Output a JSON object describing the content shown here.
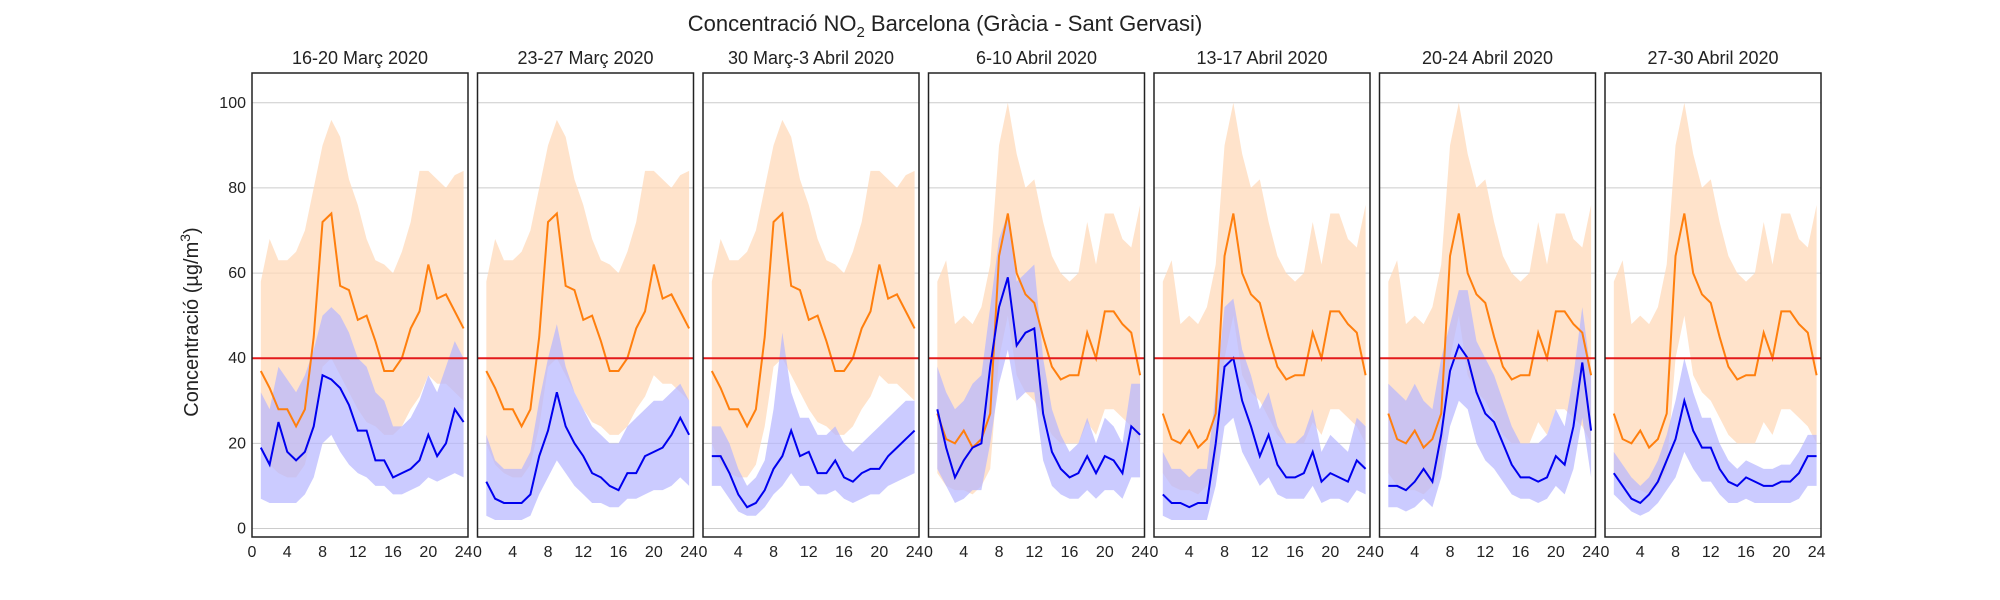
{
  "figure": {
    "title_main": "Concentració NO",
    "title_sub": "2",
    "title_rest": " Barcelona (Gràcia - Sant Gervasi)",
    "ylabel_main": "Concentració (µg/m",
    "ylabel_sup": "3",
    "ylabel_end": ")"
  },
  "chart_data": {
    "type": "line",
    "ylim": [
      -2,
      107
    ],
    "xlim": [
      0,
      24.5
    ],
    "yticks": [
      0,
      20,
      40,
      60,
      80,
      100
    ],
    "xticks": [
      0,
      4,
      8,
      12,
      16,
      20,
      24
    ],
    "grid": "horizontal",
    "threshold": 40,
    "colors": {
      "baseline_line": "#ff7f0e",
      "baseline_band": "#ffdab9",
      "current_line": "#0000ee",
      "current_band": "#b5b5ff",
      "threshold": "#e31a1c"
    },
    "panels": [
      {
        "title": "16-20 Març 2020",
        "x": [
          1,
          2,
          3,
          4,
          5,
          6,
          7,
          8,
          9,
          10,
          11,
          12,
          13,
          14,
          15,
          16,
          17,
          18,
          19,
          20,
          21,
          22,
          23,
          24
        ],
        "baseline": [
          37,
          33,
          28,
          28,
          24,
          28,
          45,
          72,
          74,
          57,
          56,
          49,
          50,
          44,
          37,
          37,
          40,
          47,
          51,
          62,
          54,
          55,
          51,
          47
        ],
        "baseline_low": [
          20,
          15,
          13,
          12,
          12,
          15,
          24,
          38,
          40,
          36,
          32,
          28,
          25,
          24,
          22,
          22,
          24,
          28,
          31,
          36,
          34,
          34,
          32,
          30
        ],
        "baseline_high": [
          58,
          68,
          63,
          63,
          65,
          70,
          80,
          90,
          96,
          92,
          82,
          76,
          68,
          63,
          62,
          60,
          65,
          72,
          84,
          84,
          82,
          80,
          83,
          84
        ],
        "current": [
          19,
          15,
          25,
          18,
          16,
          18,
          24,
          36,
          35,
          33,
          29,
          23,
          23,
          16,
          16,
          12,
          13,
          14,
          16,
          22,
          17,
          20,
          28,
          25
        ],
        "current_low": [
          7,
          6,
          6,
          6,
          6,
          8,
          12,
          20,
          22,
          18,
          15,
          13,
          12,
          10,
          10,
          8,
          8,
          9,
          10,
          12,
          11,
          12,
          13,
          12
        ],
        "current_high": [
          32,
          28,
          38,
          35,
          32,
          36,
          42,
          50,
          52,
          50,
          46,
          40,
          38,
          32,
          30,
          24,
          24,
          26,
          30,
          36,
          32,
          38,
          44,
          40
        ]
      },
      {
        "title": "23-27 Març 2020",
        "x": [
          1,
          2,
          3,
          4,
          5,
          6,
          7,
          8,
          9,
          10,
          11,
          12,
          13,
          14,
          15,
          16,
          17,
          18,
          19,
          20,
          21,
          22,
          23,
          24
        ],
        "baseline": [
          37,
          33,
          28,
          28,
          24,
          28,
          45,
          72,
          74,
          57,
          56,
          49,
          50,
          44,
          37,
          37,
          40,
          47,
          51,
          62,
          54,
          55,
          51,
          47
        ],
        "baseline_low": [
          20,
          15,
          13,
          12,
          12,
          15,
          24,
          38,
          40,
          36,
          32,
          28,
          25,
          24,
          22,
          22,
          24,
          28,
          31,
          36,
          34,
          34,
          32,
          30
        ],
        "baseline_high": [
          58,
          68,
          63,
          63,
          65,
          70,
          80,
          90,
          96,
          92,
          82,
          76,
          68,
          63,
          62,
          60,
          65,
          72,
          84,
          84,
          82,
          80,
          83,
          84
        ],
        "current": [
          11,
          7,
          6,
          6,
          6,
          8,
          17,
          23,
          32,
          24,
          20,
          17,
          13,
          12,
          10,
          9,
          13,
          13,
          17,
          18,
          19,
          22,
          26,
          22
        ],
        "current_low": [
          3,
          2,
          2,
          2,
          2,
          3,
          8,
          12,
          16,
          13,
          10,
          8,
          6,
          6,
          5,
          5,
          7,
          7,
          8,
          9,
          9,
          10,
          12,
          10
        ],
        "current_high": [
          22,
          16,
          14,
          14,
          14,
          18,
          30,
          40,
          48,
          38,
          32,
          28,
          24,
          22,
          20,
          20,
          24,
          26,
          28,
          30,
          30,
          32,
          34,
          30
        ]
      },
      {
        "title": "30 Març-3 Abril 2020",
        "x": [
          1,
          2,
          3,
          4,
          5,
          6,
          7,
          8,
          9,
          10,
          11,
          12,
          13,
          14,
          15,
          16,
          17,
          18,
          19,
          20,
          21,
          22,
          23,
          24
        ],
        "baseline": [
          37,
          33,
          28,
          28,
          24,
          28,
          45,
          72,
          74,
          57,
          56,
          49,
          50,
          44,
          37,
          37,
          40,
          47,
          51,
          62,
          54,
          55,
          51,
          47
        ],
        "baseline_low": [
          20,
          15,
          13,
          12,
          12,
          15,
          24,
          38,
          40,
          36,
          32,
          28,
          25,
          24,
          22,
          22,
          24,
          28,
          31,
          36,
          34,
          34,
          32,
          30
        ],
        "baseline_high": [
          58,
          68,
          63,
          63,
          65,
          70,
          80,
          90,
          96,
          92,
          82,
          76,
          68,
          63,
          62,
          60,
          65,
          72,
          84,
          84,
          82,
          80,
          83,
          84
        ],
        "current": [
          17,
          17,
          13,
          8,
          5,
          6,
          9,
          14,
          17,
          23,
          17,
          18,
          13,
          13,
          16,
          12,
          11,
          13,
          14,
          14,
          17,
          19,
          21,
          23
        ],
        "current_low": [
          10,
          10,
          7,
          4,
          3,
          3,
          5,
          8,
          10,
          13,
          10,
          10,
          8,
          8,
          9,
          7,
          6,
          7,
          8,
          8,
          10,
          11,
          12,
          13
        ],
        "current_high": [
          24,
          24,
          20,
          14,
          10,
          12,
          16,
          28,
          46,
          32,
          26,
          26,
          22,
          22,
          24,
          20,
          18,
          20,
          22,
          24,
          26,
          28,
          30,
          30
        ]
      },
      {
        "title": "6-10 Abril 2020",
        "x": [
          1,
          2,
          3,
          4,
          5,
          6,
          7,
          8,
          9,
          10,
          11,
          12,
          13,
          14,
          15,
          16,
          17,
          18,
          19,
          20,
          21,
          22,
          23,
          24
        ],
        "baseline": [
          27,
          21,
          20,
          23,
          19,
          21,
          27,
          64,
          74,
          60,
          55,
          53,
          45,
          38,
          35,
          36,
          36,
          46,
          40,
          51,
          51,
          48,
          46,
          36
        ],
        "baseline_low": [
          13,
          10,
          9,
          9,
          8,
          10,
          14,
          40,
          50,
          36,
          32,
          30,
          26,
          22,
          20,
          20,
          20,
          25,
          22,
          28,
          28,
          26,
          24,
          20
        ],
        "baseline_high": [
          58,
          63,
          48,
          50,
          48,
          52,
          62,
          90,
          100,
          88,
          80,
          82,
          72,
          64,
          60,
          58,
          60,
          72,
          62,
          74,
          74,
          68,
          66,
          76
        ],
        "current": [
          28,
          19,
          12,
          16,
          19,
          20,
          38,
          52,
          59,
          43,
          46,
          47,
          27,
          18,
          14,
          12,
          13,
          17,
          13,
          17,
          16,
          13,
          24,
          22
        ],
        "current_low": [
          14,
          10,
          6,
          7,
          9,
          9,
          20,
          34,
          42,
          30,
          32,
          32,
          16,
          10,
          8,
          7,
          7,
          9,
          7,
          9,
          9,
          7,
          12,
          12
        ],
        "current_high": [
          38,
          32,
          28,
          30,
          34,
          36,
          52,
          68,
          74,
          58,
          60,
          62,
          40,
          28,
          22,
          18,
          20,
          26,
          20,
          26,
          24,
          20,
          34,
          34
        ]
      },
      {
        "title": "13-17 Abril 2020",
        "x": [
          1,
          2,
          3,
          4,
          5,
          6,
          7,
          8,
          9,
          10,
          11,
          12,
          13,
          14,
          15,
          16,
          17,
          18,
          19,
          20,
          21,
          22,
          23,
          24
        ],
        "baseline": [
          27,
          21,
          20,
          23,
          19,
          21,
          27,
          64,
          74,
          60,
          55,
          53,
          45,
          38,
          35,
          36,
          36,
          46,
          40,
          51,
          51,
          48,
          46,
          36
        ],
        "baseline_low": [
          13,
          10,
          9,
          9,
          8,
          10,
          14,
          40,
          50,
          36,
          32,
          30,
          26,
          22,
          20,
          20,
          20,
          25,
          22,
          28,
          28,
          26,
          24,
          20
        ],
        "baseline_high": [
          58,
          63,
          48,
          50,
          48,
          52,
          62,
          90,
          100,
          88,
          80,
          82,
          72,
          64,
          60,
          58,
          60,
          72,
          62,
          74,
          74,
          68,
          66,
          76
        ],
        "current": [
          8,
          6,
          6,
          5,
          6,
          6,
          20,
          38,
          40,
          30,
          24,
          17,
          22,
          15,
          12,
          12,
          13,
          18,
          11,
          13,
          12,
          11,
          16,
          14
        ],
        "current_low": [
          3,
          2,
          2,
          2,
          2,
          2,
          10,
          24,
          26,
          18,
          14,
          10,
          12,
          8,
          7,
          7,
          7,
          10,
          6,
          7,
          7,
          6,
          9,
          8
        ],
        "current_high": [
          18,
          14,
          14,
          12,
          14,
          14,
          32,
          52,
          54,
          42,
          36,
          28,
          32,
          24,
          20,
          20,
          22,
          28,
          18,
          22,
          20,
          18,
          26,
          24
        ]
      },
      {
        "title": "20-24 Abril 2020",
        "x": [
          1,
          2,
          3,
          4,
          5,
          6,
          7,
          8,
          9,
          10,
          11,
          12,
          13,
          14,
          15,
          16,
          17,
          18,
          19,
          20,
          21,
          22,
          23,
          24
        ],
        "baseline": [
          27,
          21,
          20,
          23,
          19,
          21,
          27,
          64,
          74,
          60,
          55,
          53,
          45,
          38,
          35,
          36,
          36,
          46,
          40,
          51,
          51,
          48,
          46,
          36
        ],
        "baseline_low": [
          13,
          10,
          9,
          9,
          8,
          10,
          14,
          40,
          50,
          36,
          32,
          30,
          26,
          22,
          20,
          20,
          20,
          25,
          22,
          28,
          28,
          26,
          24,
          20
        ],
        "baseline_high": [
          58,
          63,
          48,
          50,
          48,
          52,
          62,
          90,
          100,
          88,
          80,
          82,
          72,
          64,
          60,
          58,
          60,
          72,
          62,
          74,
          74,
          68,
          66,
          76
        ],
        "current": [
          10,
          10,
          9,
          11,
          14,
          11,
          22,
          37,
          43,
          40,
          32,
          27,
          25,
          20,
          15,
          12,
          12,
          11,
          12,
          17,
          15,
          24,
          39,
          23
        ],
        "current_low": [
          5,
          5,
          4,
          5,
          7,
          5,
          12,
          24,
          30,
          28,
          20,
          16,
          14,
          11,
          8,
          7,
          7,
          6,
          7,
          10,
          8,
          14,
          26,
          12
        ],
        "current_high": [
          34,
          32,
          30,
          34,
          30,
          28,
          40,
          48,
          56,
          56,
          44,
          40,
          36,
          30,
          24,
          20,
          20,
          20,
          22,
          28,
          24,
          36,
          52,
          36
        ]
      },
      {
        "title": "27-30 Abril 2020",
        "x": [
          1,
          2,
          3,
          4,
          5,
          6,
          7,
          8,
          9,
          10,
          11,
          12,
          13,
          14,
          15,
          16,
          17,
          18,
          19,
          20,
          21,
          22,
          23,
          24
        ],
        "baseline": [
          27,
          21,
          20,
          23,
          19,
          21,
          27,
          64,
          74,
          60,
          55,
          53,
          45,
          38,
          35,
          36,
          36,
          46,
          40,
          51,
          51,
          48,
          46,
          36
        ],
        "baseline_low": [
          13,
          10,
          9,
          9,
          8,
          10,
          14,
          40,
          50,
          36,
          32,
          30,
          26,
          22,
          20,
          20,
          20,
          25,
          22,
          28,
          28,
          26,
          24,
          20
        ],
        "baseline_high": [
          58,
          63,
          48,
          50,
          48,
          52,
          62,
          90,
          100,
          88,
          80,
          82,
          72,
          64,
          60,
          58,
          60,
          72,
          62,
          74,
          74,
          68,
          66,
          76
        ],
        "current": [
          13,
          10,
          7,
          6,
          8,
          11,
          16,
          21,
          30,
          23,
          19,
          19,
          14,
          11,
          10,
          12,
          11,
          10,
          10,
          11,
          11,
          13,
          17,
          17
        ],
        "current_low": [
          8,
          6,
          4,
          3,
          4,
          6,
          9,
          12,
          18,
          14,
          11,
          11,
          8,
          6,
          6,
          7,
          6,
          6,
          6,
          6,
          6,
          7,
          10,
          10
        ],
        "current_high": [
          18,
          15,
          12,
          10,
          12,
          16,
          22,
          30,
          40,
          32,
          26,
          26,
          20,
          16,
          14,
          16,
          15,
          14,
          14,
          15,
          15,
          18,
          22,
          22
        ]
      }
    ]
  }
}
